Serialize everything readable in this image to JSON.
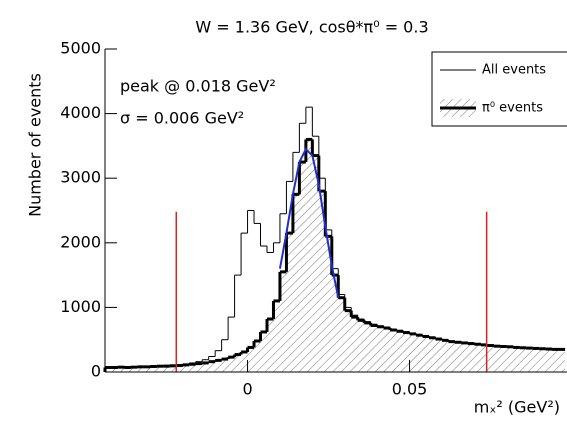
{
  "chart_data": {
    "type": "histogram",
    "title": "W = 1.36 GeV, cosθ*π⁰ = 0.3",
    "x_label": "mₓ² (GeV²)",
    "y_label": "Number of events",
    "annotations": [
      "peak @ 0.018 GeV²",
      "σ = 0.006 GeV²"
    ],
    "bins": [
      -0.044,
      -0.042,
      -0.04,
      -0.038,
      -0.036,
      -0.034,
      -0.032,
      -0.03,
      -0.028,
      -0.026,
      -0.024,
      -0.022,
      -0.02,
      -0.018,
      -0.016,
      -0.014,
      -0.012,
      -0.01,
      -0.008,
      -0.006,
      -0.004,
      -0.002,
      0,
      0.002,
      0.004,
      0.006,
      0.008,
      0.01,
      0.012,
      0.014,
      0.016,
      0.018,
      0.02,
      0.022,
      0.024,
      0.026,
      0.028,
      0.03,
      0.032,
      0.034,
      0.036,
      0.038,
      0.04,
      0.042,
      0.044,
      0.046,
      0.048,
      0.05,
      0.052,
      0.054,
      0.056,
      0.058,
      0.06,
      0.062,
      0.064,
      0.066,
      0.068,
      0.07,
      0.072,
      0.074,
      0.076,
      0.078,
      0.08,
      0.082,
      0.084,
      0.086,
      0.088,
      0.09,
      0.092,
      0.094,
      0.096,
      0.098
    ],
    "series": [
      {
        "name": "All events",
        "color": "#000000",
        "style": "thin",
        "values": [
          80,
          80,
          85,
          80,
          85,
          90,
          90,
          95,
          100,
          105,
          110,
          115,
          125,
          140,
          160,
          190,
          240,
          330,
          500,
          850,
          1500,
          2150,
          2500,
          2300,
          1950,
          1850,
          2000,
          2450,
          2950,
          3400,
          3850,
          4100,
          3650,
          3000,
          2200,
          1600,
          1200,
          1000,
          880,
          820,
          780,
          740,
          715,
          695,
          665,
          645,
          625,
          600,
          580,
          560,
          540,
          520,
          500,
          480,
          470,
          460,
          450,
          440,
          430,
          420,
          410,
          405,
          400,
          390,
          385,
          380,
          375,
          370,
          365,
          360,
          360
        ]
      },
      {
        "name": "π⁰ events",
        "color": "#000000",
        "style": "hatched",
        "values": [
          70,
          70,
          75,
          70,
          75,
          80,
          80,
          85,
          90,
          90,
          95,
          100,
          110,
          120,
          130,
          140,
          160,
          180,
          200,
          230,
          270,
          310,
          380,
          480,
          620,
          820,
          1100,
          1550,
          2150,
          2750,
          3250,
          3600,
          3350,
          2800,
          2100,
          1500,
          1150,
          950,
          850,
          800,
          760,
          720,
          700,
          680,
          650,
          630,
          610,
          590,
          570,
          550,
          530,
          510,
          490,
          470,
          460,
          450,
          440,
          430,
          420,
          410,
          400,
          395,
          390,
          380,
          375,
          370,
          365,
          360,
          355,
          350,
          350
        ]
      }
    ],
    "fit": {
      "color": "#1f2fc8",
      "x": [
        0.01,
        0.012,
        0.014,
        0.016,
        0.018,
        0.02,
        0.022,
        0.024,
        0.026,
        0.028
      ],
      "values": [
        1600,
        2150,
        2750,
        3250,
        3450,
        3350,
        2900,
        2250,
        1650,
        1150
      ]
    },
    "cut_lines": {
      "color": "#e02020",
      "x": [
        -0.022,
        0.0738
      ],
      "values": [
        2480,
        2480
      ]
    },
    "xlim": [
      -0.044,
      0.0986
    ],
    "ylim": [
      0,
      5000
    ],
    "xticks": [
      0,
      0.05
    ],
    "yticks": [
      0,
      1000,
      2000,
      3000,
      4000,
      5000
    ],
    "legend": "top-right"
  }
}
